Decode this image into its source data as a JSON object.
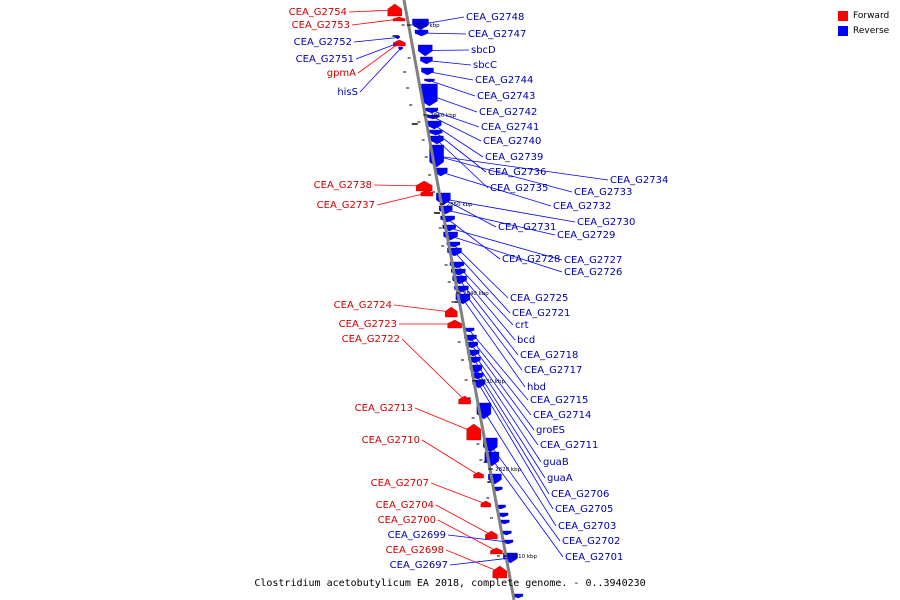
{
  "colors": {
    "forward": "#ff0000",
    "reverse": "#0000ff",
    "backbone": "#808080",
    "tick": "#000000",
    "label_forward": "#cc0000",
    "label_reverse": "#0000aa"
  },
  "legend": [
    {
      "label": "Forward",
      "color": "#ff0000"
    },
    {
      "label": "Reverse",
      "color": "#0000ff"
    }
  ],
  "caption": "Clostridium acetobutylicum EA 2018, complete genome. - 0..3940230",
  "scale_labels": [
    "2870 kbp",
    "2860 kbp",
    "2850 kbp",
    "2840 kbp",
    "2830 kbp",
    "2820 kbp",
    "2810 kbp"
  ],
  "forward_genes": [
    "CEA_G2754",
    "CEA_G2753",
    "gpmA",
    "CEA_G2738",
    "CEA_G2737",
    "CEA_G2724",
    "CEA_G2723",
    "CEA_G2722",
    "CEA_G2713",
    "CEA_G2710",
    "CEA_G2707",
    "CEA_G2704",
    "CEA_G2700",
    "CEA_G2698"
  ],
  "reverse_genes": [
    "CEA_G2752",
    "CEA_G2751",
    "hisS",
    "CEA_G2748",
    "CEA_G2747",
    "sbcD",
    "sbcC",
    "CEA_G2744",
    "CEA_G2743",
    "CEA_G2742",
    "CEA_G2741",
    "CEA_G2740",
    "CEA_G2739",
    "CEA_G2736",
    "CEA_G2735",
    "CEA_G2734",
    "CEA_G2733",
    "CEA_G2732",
    "CEA_G2731",
    "CEA_G2730",
    "CEA_G2729",
    "CEA_G2728",
    "CEA_G2727",
    "CEA_G2726",
    "CEA_G2725",
    "CEA_G2721",
    "crt",
    "bcd",
    "CEA_G2718",
    "CEA_G2717",
    "hbd",
    "CEA_G2715",
    "CEA_G2714",
    "groES",
    "CEA_G2711",
    "guaB",
    "guaA",
    "CEA_G2706",
    "CEA_G2705",
    "CEA_G2703",
    "CEA_G2702",
    "CEA_G2701",
    "CEA_G2699",
    "CEA_G2697"
  ]
}
